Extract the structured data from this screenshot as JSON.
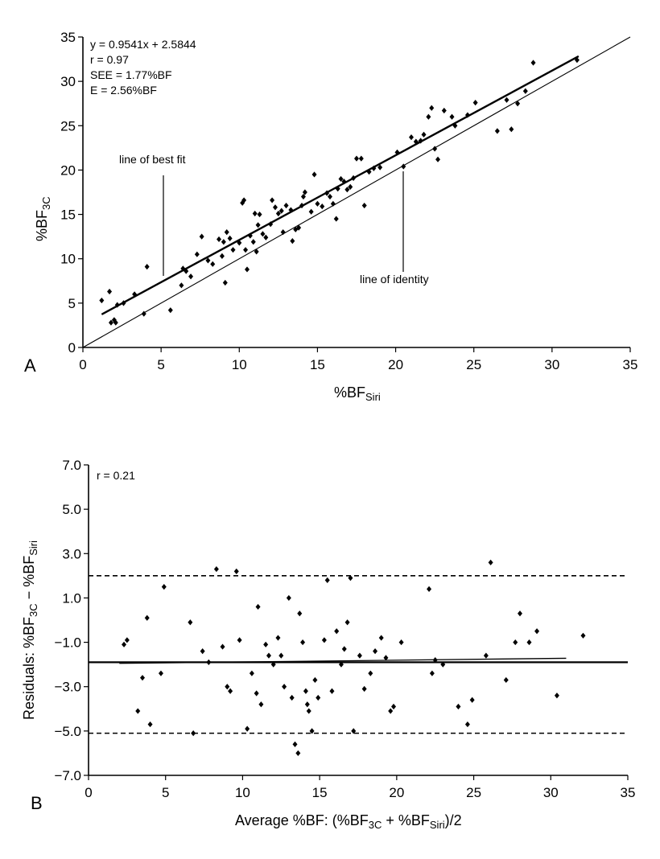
{
  "chart_data": [
    {
      "panel": "A",
      "type": "scatter",
      "xlabel_main": "%BF",
      "xlabel_sub": "Siri",
      "ylabel_main": "%BF",
      "ylabel_sub": "3C",
      "xlim": [
        0,
        35
      ],
      "ylim": [
        0,
        35
      ],
      "xticks": [
        "0",
        "5",
        "10",
        "15",
        "20",
        "25",
        "30",
        "35"
      ],
      "yticks": [
        "0",
        "5",
        "10",
        "15",
        "20",
        "25",
        "30",
        "35"
      ],
      "stats": {
        "equation": "y = 0.9541x + 2.5844",
        "r": "r = 0.97",
        "see": "SEE = 1.77%BF",
        "e": "E = 2.56%BF"
      },
      "fit_line": {
        "slope": 0.9541,
        "intercept": 2.5844,
        "x_range": [
          1.2,
          31.7
        ]
      },
      "identity_line": {
        "x_range": [
          0,
          35
        ]
      },
      "annotations": {
        "best_fit": "line of best fit",
        "identity": "line of identity"
      },
      "points": [
        [
          1.2,
          5.3
        ],
        [
          1.7,
          6.3
        ],
        [
          1.8,
          2.8
        ],
        [
          2.0,
          3.1
        ],
        [
          2.1,
          2.8
        ],
        [
          2.2,
          4.8
        ],
        [
          2.6,
          5.0
        ],
        [
          3.3,
          6.0
        ],
        [
          3.9,
          3.8
        ],
        [
          4.1,
          9.1
        ],
        [
          5.6,
          4.2
        ],
        [
          6.3,
          7.0
        ],
        [
          6.4,
          8.9
        ],
        [
          6.6,
          8.6
        ],
        [
          6.9,
          8.0
        ],
        [
          7.3,
          10.5
        ],
        [
          7.6,
          12.5
        ],
        [
          8.0,
          9.8
        ],
        [
          8.3,
          9.4
        ],
        [
          8.7,
          12.2
        ],
        [
          8.9,
          10.3
        ],
        [
          9.0,
          11.9
        ],
        [
          9.1,
          7.3
        ],
        [
          9.2,
          13.0
        ],
        [
          9.4,
          12.3
        ],
        [
          9.6,
          11.0
        ],
        [
          10.0,
          11.8
        ],
        [
          10.2,
          16.3
        ],
        [
          10.3,
          16.6
        ],
        [
          10.4,
          11.0
        ],
        [
          10.5,
          8.8
        ],
        [
          10.7,
          12.6
        ],
        [
          10.9,
          11.9
        ],
        [
          11.0,
          15.1
        ],
        [
          11.1,
          10.8
        ],
        [
          11.2,
          13.8
        ],
        [
          11.3,
          15.0
        ],
        [
          11.5,
          12.8
        ],
        [
          11.7,
          12.4
        ],
        [
          12.0,
          13.9
        ],
        [
          12.1,
          16.6
        ],
        [
          12.3,
          15.8
        ],
        [
          12.5,
          15.1
        ],
        [
          12.7,
          15.4
        ],
        [
          12.8,
          13.0
        ],
        [
          13.0,
          16.0
        ],
        [
          13.3,
          15.5
        ],
        [
          13.4,
          12.0
        ],
        [
          13.6,
          13.3
        ],
        [
          13.8,
          13.5
        ],
        [
          14.0,
          16.0
        ],
        [
          14.1,
          17.0
        ],
        [
          14.2,
          17.5
        ],
        [
          14.6,
          15.3
        ],
        [
          14.8,
          19.5
        ],
        [
          15.0,
          16.2
        ],
        [
          15.3,
          15.9
        ],
        [
          15.6,
          17.4
        ],
        [
          15.8,
          17.0
        ],
        [
          16.0,
          16.2
        ],
        [
          16.2,
          14.5
        ],
        [
          16.3,
          17.9
        ],
        [
          16.5,
          19.0
        ],
        [
          16.7,
          18.7
        ],
        [
          16.9,
          17.8
        ],
        [
          17.1,
          18.1
        ],
        [
          17.3,
          19.1
        ],
        [
          17.5,
          21.3
        ],
        [
          17.8,
          21.3
        ],
        [
          18.0,
          16.0
        ],
        [
          18.3,
          19.8
        ],
        [
          18.6,
          20.2
        ],
        [
          19.0,
          20.3
        ],
        [
          20.1,
          22.0
        ],
        [
          20.5,
          20.4
        ],
        [
          21.0,
          23.7
        ],
        [
          21.3,
          23.2
        ],
        [
          21.6,
          23.3
        ],
        [
          21.8,
          24.0
        ],
        [
          22.1,
          26.0
        ],
        [
          22.3,
          27.0
        ],
        [
          22.5,
          22.4
        ],
        [
          22.7,
          21.2
        ],
        [
          23.1,
          26.7
        ],
        [
          23.6,
          26.0
        ],
        [
          23.8,
          25.0
        ],
        [
          24.6,
          26.2
        ],
        [
          25.1,
          27.6
        ],
        [
          26.5,
          24.4
        ],
        [
          27.1,
          27.9
        ],
        [
          27.4,
          24.6
        ],
        [
          27.8,
          27.5
        ],
        [
          28.3,
          28.9
        ],
        [
          28.8,
          32.1
        ],
        [
          31.6,
          32.4
        ]
      ]
    },
    {
      "panel": "B",
      "type": "scatter",
      "xlabel": "Average %BF: (%BF",
      "xlabel_sub1": "3C",
      "xlabel_mid": " + %BF",
      "xlabel_sub2": "Siri",
      "xlabel_end": ")/2",
      "ylabel_a": "Residuals: %BF",
      "ylabel_sub1": "3C",
      "ylabel_b": " − %BF",
      "ylabel_sub2": "Siri",
      "xlim": [
        0,
        35
      ],
      "ylim": [
        -7,
        7
      ],
      "xticks": [
        "0",
        "5",
        "10",
        "15",
        "20",
        "25",
        "30",
        "35"
      ],
      "yticks": [
        "7.0",
        "5.0",
        "3.0",
        "1.0",
        "−1.0",
        "−3.0",
        "−5.0",
        "−7.0"
      ],
      "ytick_values": [
        7,
        5,
        3,
        1,
        -1,
        -3,
        -5,
        -7
      ],
      "stats": {
        "r": "r = 0.21"
      },
      "mean_line": -1.9,
      "upper_limit": 2.0,
      "lower_limit": -5.1,
      "trend_line": {
        "x_range": [
          2.0,
          31.0
        ],
        "y_range": [
          -1.95,
          -1.72
        ]
      },
      "points": [
        [
          2.3,
          -1.1
        ],
        [
          2.5,
          -0.9
        ],
        [
          3.2,
          -4.1
        ],
        [
          3.5,
          -2.6
        ],
        [
          3.8,
          0.1
        ],
        [
          4.0,
          -4.7
        ],
        [
          4.7,
          -2.4
        ],
        [
          4.9,
          1.5
        ],
        [
          6.6,
          -0.1
        ],
        [
          6.8,
          -5.1
        ],
        [
          7.4,
          -1.4
        ],
        [
          7.8,
          -1.9
        ],
        [
          8.3,
          2.3
        ],
        [
          8.7,
          -1.2
        ],
        [
          9.0,
          -3.0
        ],
        [
          9.2,
          -3.2
        ],
        [
          9.6,
          2.2
        ],
        [
          9.8,
          -0.9
        ],
        [
          10.3,
          -4.9
        ],
        [
          10.6,
          -2.4
        ],
        [
          10.9,
          -3.3
        ],
        [
          11.0,
          0.6
        ],
        [
          11.2,
          -3.8
        ],
        [
          11.5,
          -1.1
        ],
        [
          11.7,
          -1.6
        ],
        [
          12.0,
          -2.0
        ],
        [
          12.3,
          -0.8
        ],
        [
          12.5,
          -1.6
        ],
        [
          12.7,
          -3.0
        ],
        [
          13.0,
          1.0
        ],
        [
          13.2,
          -3.5
        ],
        [
          13.4,
          -5.6
        ],
        [
          13.6,
          -6.0
        ],
        [
          13.7,
          0.3
        ],
        [
          13.9,
          -1.0
        ],
        [
          14.1,
          -3.2
        ],
        [
          14.2,
          -3.8
        ],
        [
          14.3,
          -4.1
        ],
        [
          14.5,
          -5.0
        ],
        [
          14.7,
          -2.7
        ],
        [
          14.9,
          -3.5
        ],
        [
          15.3,
          -0.9
        ],
        [
          15.5,
          1.8
        ],
        [
          15.8,
          -3.2
        ],
        [
          16.1,
          -0.5
        ],
        [
          16.4,
          -2.0
        ],
        [
          16.6,
          -1.3
        ],
        [
          16.8,
          -0.1
        ],
        [
          17.0,
          1.9
        ],
        [
          17.2,
          -5.0
        ],
        [
          17.6,
          -1.6
        ],
        [
          17.9,
          -3.1
        ],
        [
          18.3,
          -2.4
        ],
        [
          18.6,
          -1.4
        ],
        [
          19.0,
          -0.8
        ],
        [
          19.3,
          -1.7
        ],
        [
          19.6,
          -4.1
        ],
        [
          19.8,
          -3.9
        ],
        [
          20.3,
          -1.0
        ],
        [
          22.1,
          1.4
        ],
        [
          22.3,
          -2.4
        ],
        [
          22.5,
          -1.8
        ],
        [
          23.0,
          -2.0
        ],
        [
          24.0,
          -3.9
        ],
        [
          24.6,
          -4.7
        ],
        [
          24.9,
          -3.6
        ],
        [
          25.8,
          -1.6
        ],
        [
          26.1,
          2.6
        ],
        [
          27.1,
          -2.7
        ],
        [
          27.7,
          -1.0
        ],
        [
          28.0,
          0.3
        ],
        [
          28.6,
          -1.0
        ],
        [
          29.1,
          -0.5
        ],
        [
          30.4,
          -3.4
        ],
        [
          32.1,
          -0.7
        ]
      ]
    }
  ],
  "panels": {
    "a": "A",
    "b": "B"
  }
}
